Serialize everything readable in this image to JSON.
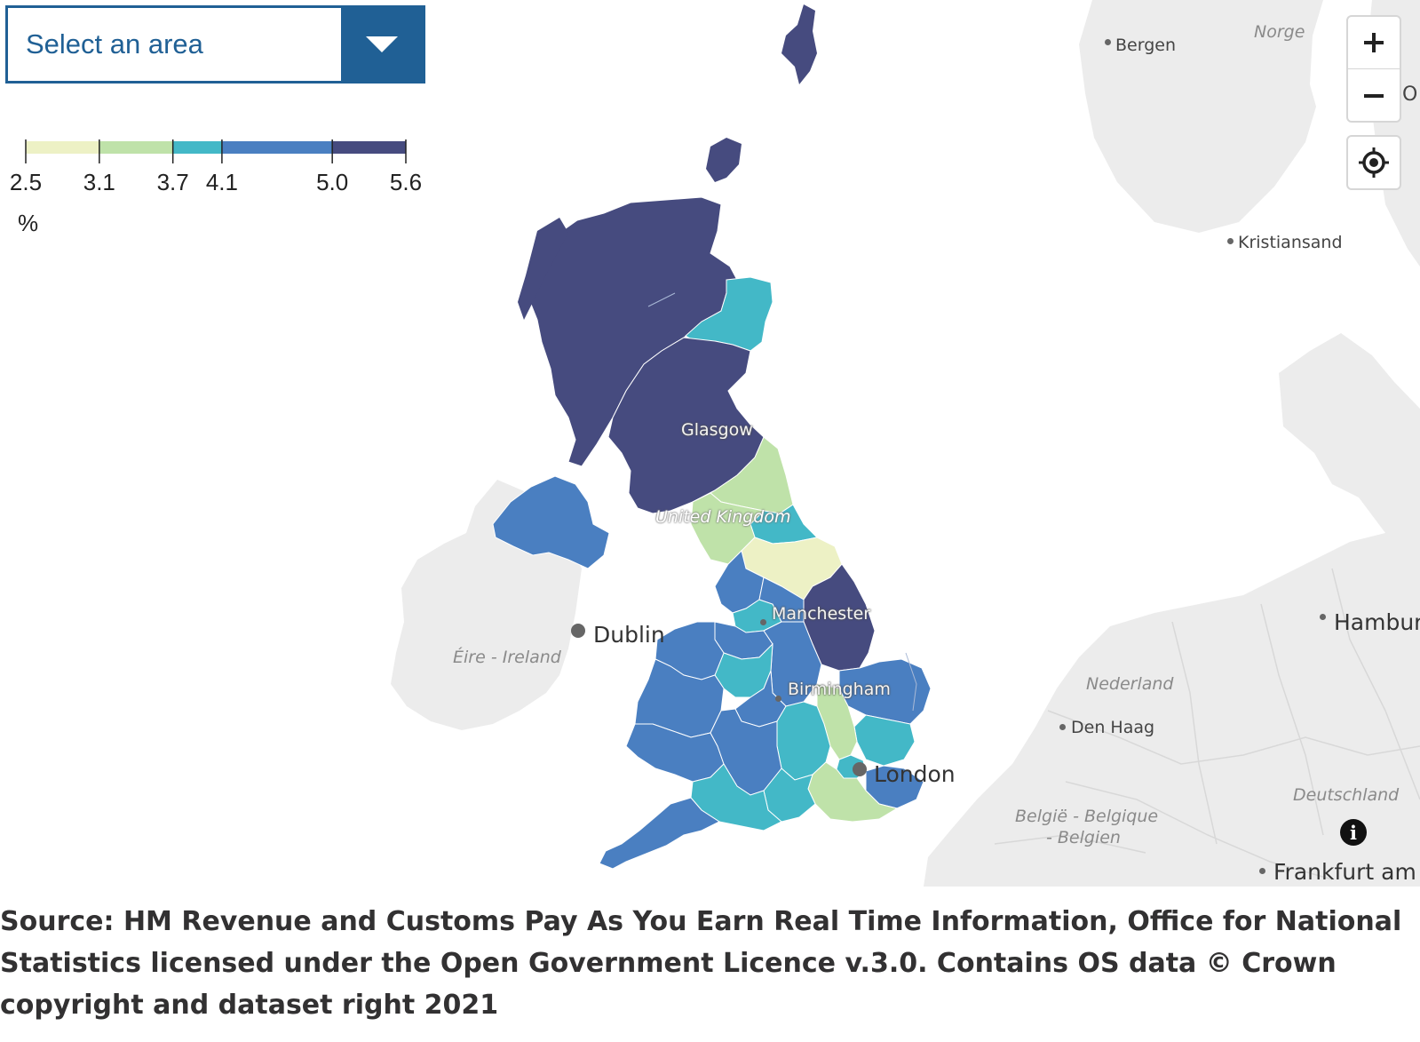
{
  "select": {
    "label": "Select an area",
    "icon": "chevron-down-icon"
  },
  "legend": {
    "breaks": [
      "2.5",
      "3.1",
      "3.7",
      "4.1",
      "5.0",
      "5.6"
    ],
    "unit": "%",
    "colors": [
      "#edf1c5",
      "#bfe2a9",
      "#43b8c7",
      "#4a7fc1",
      "#464b7f"
    ]
  },
  "controls": {
    "zoom_in_icon": "plus-icon",
    "zoom_out_icon": "minus-icon",
    "locate_icon": "locate-target-icon"
  },
  "places": {
    "bergen": "Bergen",
    "norge": "Norge",
    "kristiansand": "Kristiansand",
    "glasgow": "Glasgow",
    "united_kingdom": "United Kingdom",
    "manchester": "Manchester",
    "dublin": "Dublin",
    "ireland": "Éire - Ireland",
    "birmingham": "Birmingham",
    "london": "London",
    "nederland": "Nederland",
    "den_haag": "Den Haag",
    "belgie_1": "België - Belgique",
    "belgie_2": "- Belgien",
    "deutschland": "Deutschland",
    "hamburg": "Hambur",
    "frankfurt": "Frankfurt am",
    "oslo_partial": "O"
  },
  "info_icon": "info-icon",
  "source": "Source: HM Revenue and Customs Pay As You Earn Real Time Information, Office for National Statistics licensed under the Open Government Licence v.3.0. Contains OS data © Crown copyright and dataset right 2021"
}
